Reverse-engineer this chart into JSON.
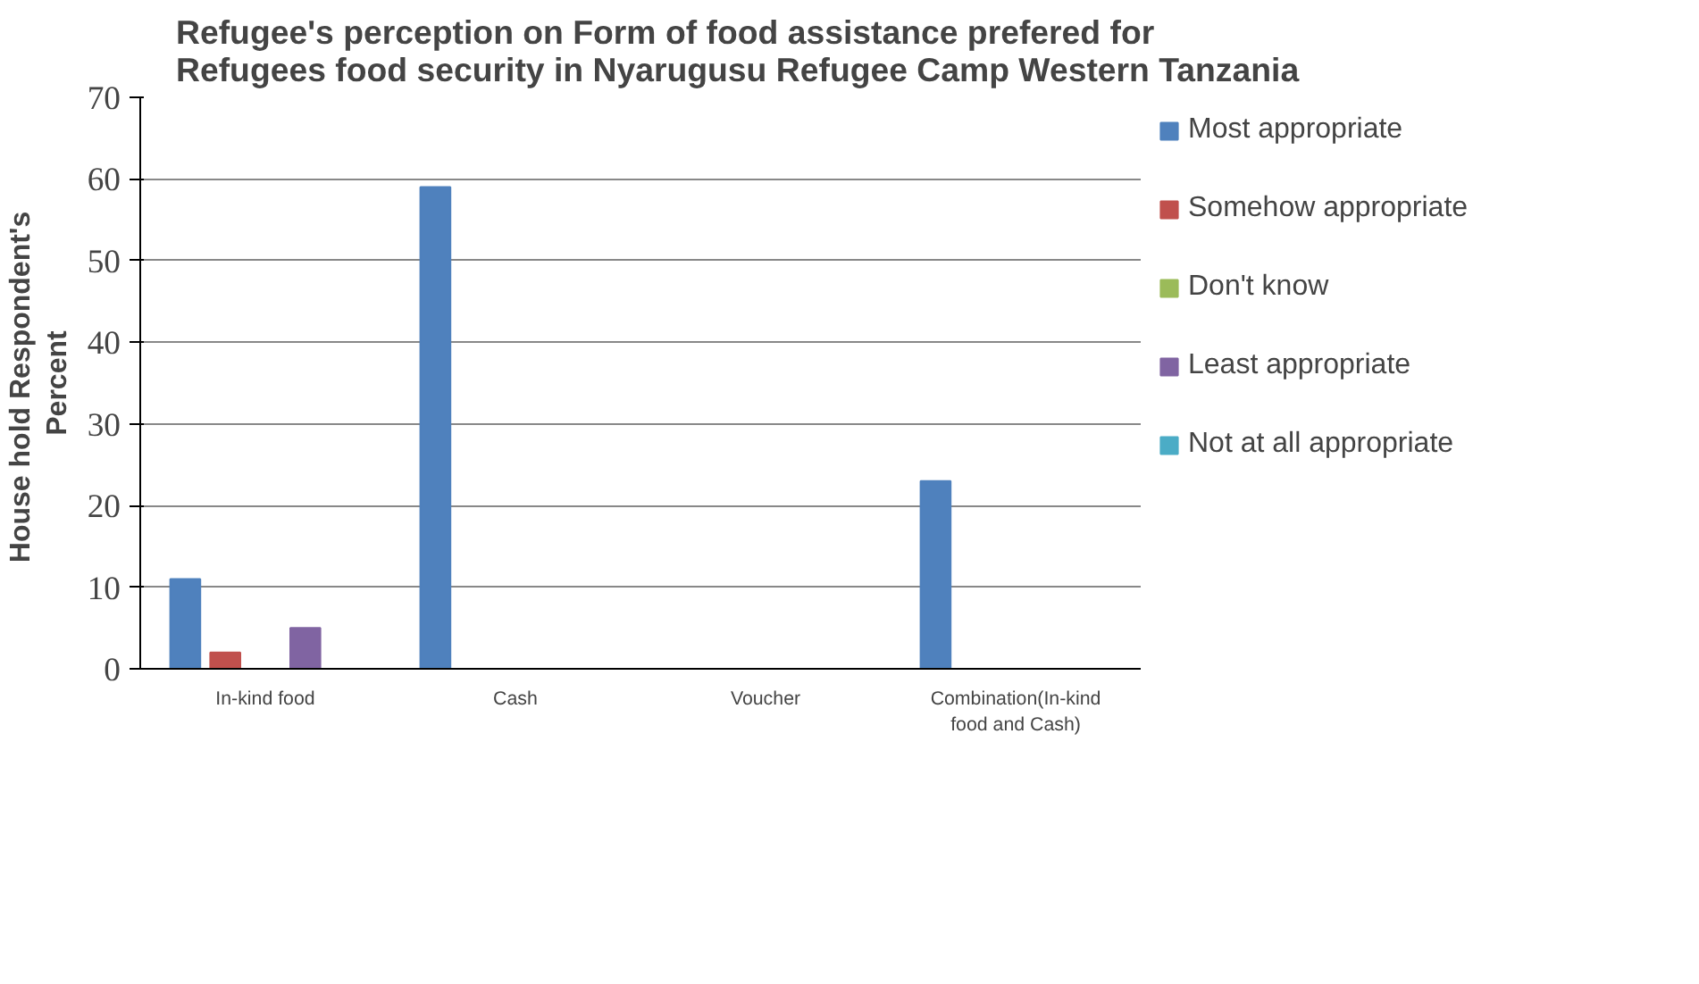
{
  "chart_data": {
    "type": "bar",
    "title": "Refugee's perception on Form of food assistance prefered for\nRefugees food security in Nyarugusu Refugee Camp Western Tanzania",
    "ylabel": "House hold  Respondent's\nPercent",
    "categories": [
      "In-kind food",
      "Cash",
      "Voucher",
      "Combination(In-kind food and Cash)"
    ],
    "series": [
      {
        "name": "Most appropriate",
        "color": "#4f81bd",
        "values": [
          11,
          59,
          0,
          23
        ]
      },
      {
        "name": "Somehow appropriate",
        "color": "#c0504d",
        "values": [
          2,
          0,
          0,
          0
        ]
      },
      {
        "name": "Don't know",
        "color": "#9bbb59",
        "values": [
          0,
          0,
          0,
          0
        ]
      },
      {
        "name": "Least appropriate",
        "color": "#8064a2",
        "values": [
          5,
          0,
          0,
          0
        ]
      },
      {
        "name": "Not at all appropriate",
        "color": "#4bacc6",
        "values": [
          0,
          0,
          0,
          0
        ]
      }
    ],
    "ylim": [
      0,
      70
    ],
    "yticks": [
      0,
      10,
      20,
      30,
      40,
      50,
      60,
      70
    ],
    "grid": "y",
    "legend": "right"
  }
}
